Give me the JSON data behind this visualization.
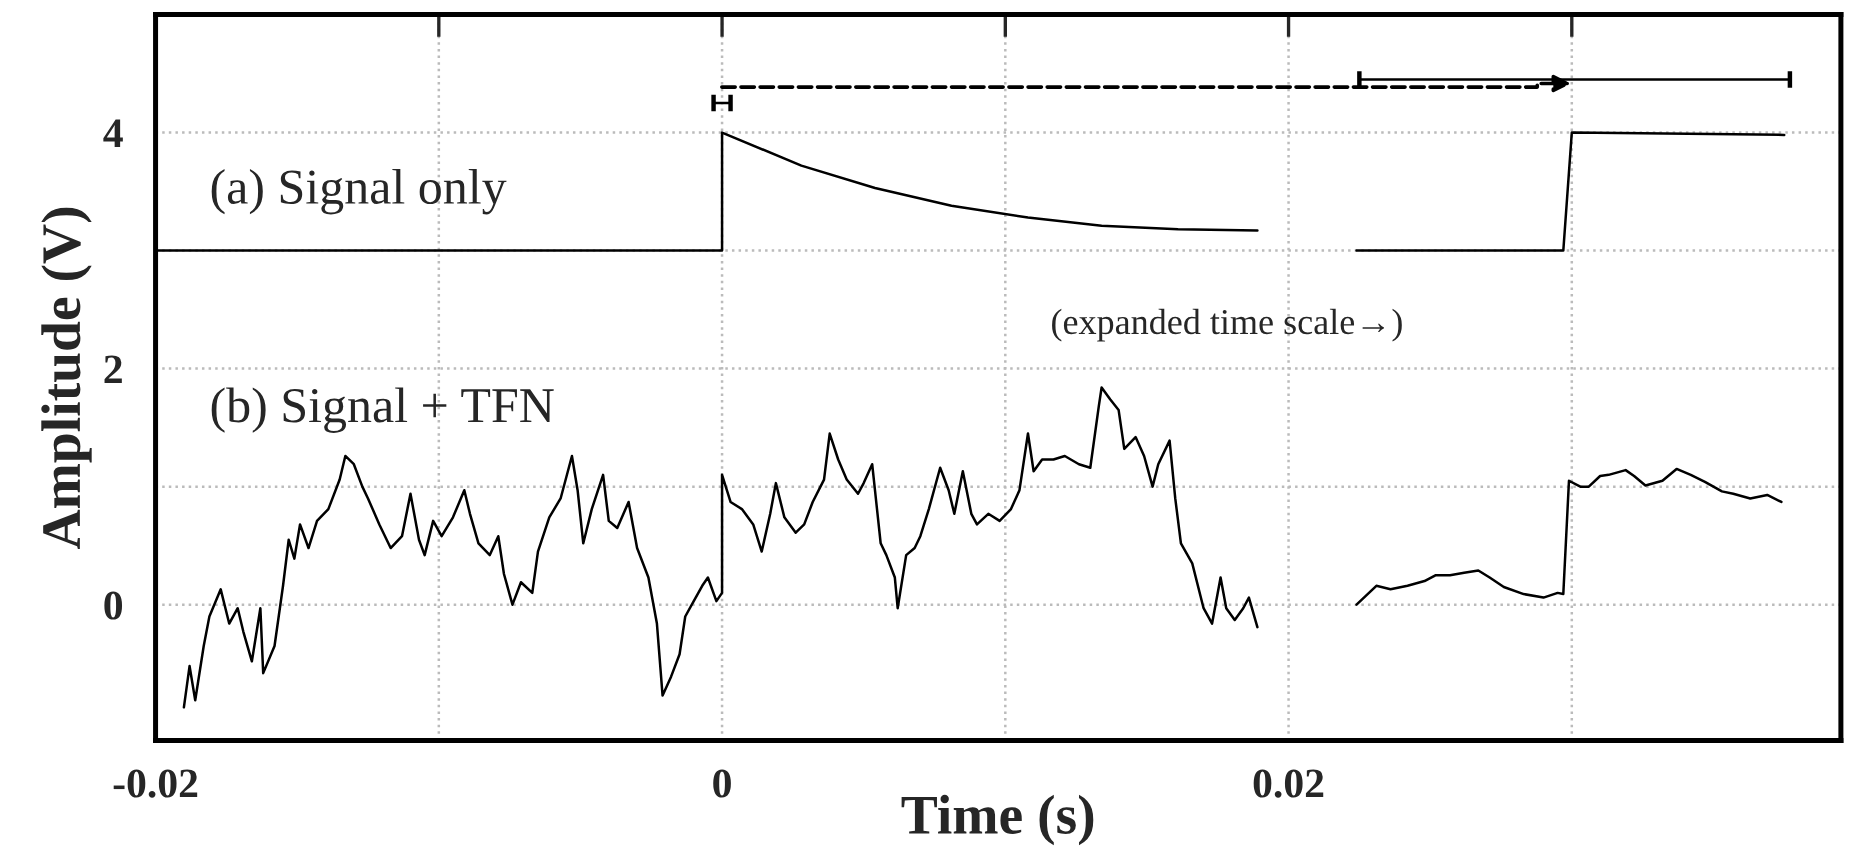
{
  "chart_data": {
    "type": "line",
    "xlabel": "Time (s)",
    "ylabel": "Amplitude (V)",
    "annotations": [
      "(expanded time scale→)"
    ],
    "xlim": [
      -0.02,
      0.0395
    ],
    "xticks": [
      -0.02,
      {
        "value": -0.01,
        "label": null
      },
      0,
      {
        "value": 0.01,
        "label": null
      },
      0.02,
      {
        "value": 0.03,
        "label": null
      }
    ],
    "ylim": [
      -1.15,
      5
    ],
    "yticks": [
      0,
      {
        "value": 1,
        "label": null
      },
      2,
      {
        "value": 3,
        "label": null
      },
      4
    ],
    "grid": true,
    "legend": false,
    "marker": "none",
    "line_style": "solid",
    "series": [
      {
        "name": "(a) Signal only",
        "color": "#000000",
        "x": [
          -0.02,
          0,
          0,
          0.0028,
          0.0054,
          0.0081,
          0.0108,
          0.0134,
          0.0161,
          0.0189
        ],
        "values": [
          3,
          3,
          4,
          3.72,
          3.53,
          3.38,
          3.28,
          3.21,
          3.18,
          3.17
        ]
      },
      {
        "color": "#000000",
        "x": [
          0.0224,
          0.0297,
          0.03,
          0.0375
        ],
        "values": [
          3,
          3,
          4,
          3.98
        ]
      },
      {
        "color": "#000000",
        "x": [
          -0.0003,
          0.0003
        ],
        "values": [
          4.25,
          4.25
        ],
        "errors": [
          0.07,
          0.07
        ]
      },
      {
        "color": "#000000",
        "x": [
          0.0225,
          0.0377
        ],
        "values": [
          4.45,
          4.45
        ],
        "errors": [
          0.07,
          0.07
        ]
      },
      {
        "name": "(b) Signal + TFN",
        "color": "#000000",
        "x": [
          -0.019,
          -0.0188,
          -0.0186,
          -0.0183,
          -0.0181,
          -0.0177,
          -0.0174,
          -0.0171,
          -0.0169,
          -0.0166,
          -0.0163,
          -0.0162,
          -0.0158,
          -0.0155,
          -0.0153,
          -0.0151,
          -0.0149,
          -0.0146,
          -0.0143,
          -0.0139,
          -0.0135,
          -0.0133,
          -0.013,
          -0.0127,
          -0.0125,
          -0.0121,
          -0.0117,
          -0.0113,
          -0.011,
          -0.0107,
          -0.0105,
          -0.0102,
          -0.0099,
          -0.0095,
          -0.0091,
          -0.0089,
          -0.0086,
          -0.0082,
          -0.0079,
          -0.0077,
          -0.0074,
          -0.0071,
          -0.0067,
          -0.0065,
          -0.0061,
          -0.0057,
          -0.0053,
          -0.0051,
          -0.0049,
          -0.0046,
          -0.0042,
          -0.004,
          -0.0037,
          -0.0033,
          -0.003,
          -0.0026,
          -0.0023,
          -0.0021,
          -0.0018,
          -0.0015,
          -0.0013,
          -0.001,
          -0.0007,
          -0.0005,
          -0.0002,
          0,
          0,
          0.0003,
          0.0007,
          0.0011,
          0.0014,
          0.0017,
          0.0019,
          0.0022,
          0.0026,
          0.0029,
          0.0032,
          0.0036,
          0.0038,
          0.0041,
          0.0044,
          0.0048,
          0.005,
          0.0053,
          0.0056,
          0.0058,
          0.0061,
          0.0062,
          0.0065,
          0.0068,
          0.007,
          0.0073,
          0.0077,
          0.008,
          0.0082,
          0.0085,
          0.0088,
          0.009,
          0.0094,
          0.0098,
          0.0102,
          0.0105,
          0.0108,
          0.011,
          0.0113,
          0.0117,
          0.0121,
          0.0126,
          0.013,
          0.0133,
          0.0134,
          0.0137,
          0.014,
          0.0142,
          0.0146,
          0.0149,
          0.0152,
          0.0154,
          0.0158,
          0.016,
          0.0162,
          0.0166,
          0.017,
          0.0173,
          0.0176,
          0.0178,
          0.0181,
          0.0184,
          0.0186,
          0.0189
        ],
        "values": [
          -0.87,
          -0.52,
          -0.81,
          -0.35,
          -0.1,
          0.13,
          -0.16,
          -0.03,
          -0.23,
          -0.48,
          -0.03,
          -0.58,
          -0.35,
          0.16,
          0.55,
          0.39,
          0.68,
          0.48,
          0.71,
          0.81,
          1.06,
          1.26,
          1.19,
          1.0,
          0.9,
          0.68,
          0.48,
          0.58,
          0.94,
          0.55,
          0.42,
          0.71,
          0.58,
          0.74,
          0.97,
          0.77,
          0.52,
          0.42,
          0.58,
          0.26,
          0.0,
          0.19,
          0.1,
          0.45,
          0.74,
          0.9,
          1.26,
          0.97,
          0.52,
          0.81,
          1.1,
          0.71,
          0.65,
          0.87,
          0.48,
          0.23,
          -0.16,
          -0.77,
          -0.61,
          -0.42,
          -0.1,
          0.03,
          0.16,
          0.23,
          0.03,
          0.1,
          1.1,
          0.87,
          0.81,
          0.68,
          0.45,
          0.77,
          1.03,
          0.74,
          0.61,
          0.68,
          0.87,
          1.06,
          1.45,
          1.23,
          1.06,
          0.94,
          1.03,
          1.19,
          0.52,
          0.42,
          0.23,
          -0.03,
          0.42,
          0.48,
          0.58,
          0.81,
          1.16,
          0.97,
          0.77,
          1.13,
          0.77,
          0.68,
          0.77,
          0.71,
          0.81,
          0.97,
          1.45,
          1.13,
          1.23,
          1.23,
          1.26,
          1.19,
          1.16,
          1.68,
          1.84,
          1.74,
          1.65,
          1.32,
          1.42,
          1.26,
          1.0,
          1.19,
          1.39,
          0.9,
          0.52,
          0.35,
          -0.03,
          -0.16,
          0.23,
          -0.03,
          -0.13,
          -0.03,
          0.06,
          -0.19
        ]
      },
      {
        "color": "#000000",
        "x": [
          0.0224,
          0.0231,
          0.0236,
          0.0242,
          0.0248,
          0.0252,
          0.0257,
          0.0262,
          0.0267,
          0.0271,
          0.0276,
          0.0283,
          0.029,
          0.0295,
          0.0297,
          0.0299,
          0.0303,
          0.0306,
          0.031,
          0.0313,
          0.0319,
          0.0322,
          0.0326,
          0.0332,
          0.0337,
          0.0342,
          0.0347,
          0.0353,
          0.0357,
          0.0363,
          0.0369,
          0.0374
        ],
        "values": [
          0.0,
          0.16,
          0.13,
          0.16,
          0.2,
          0.25,
          0.25,
          0.27,
          0.29,
          0.23,
          0.15,
          0.09,
          0.06,
          0.1,
          0.09,
          1.05,
          1.0,
          1.0,
          1.09,
          1.1,
          1.14,
          1.09,
          1.01,
          1.05,
          1.15,
          1.1,
          1.04,
          0.96,
          0.94,
          0.9,
          0.93,
          0.87
        ]
      }
    ]
  }
}
